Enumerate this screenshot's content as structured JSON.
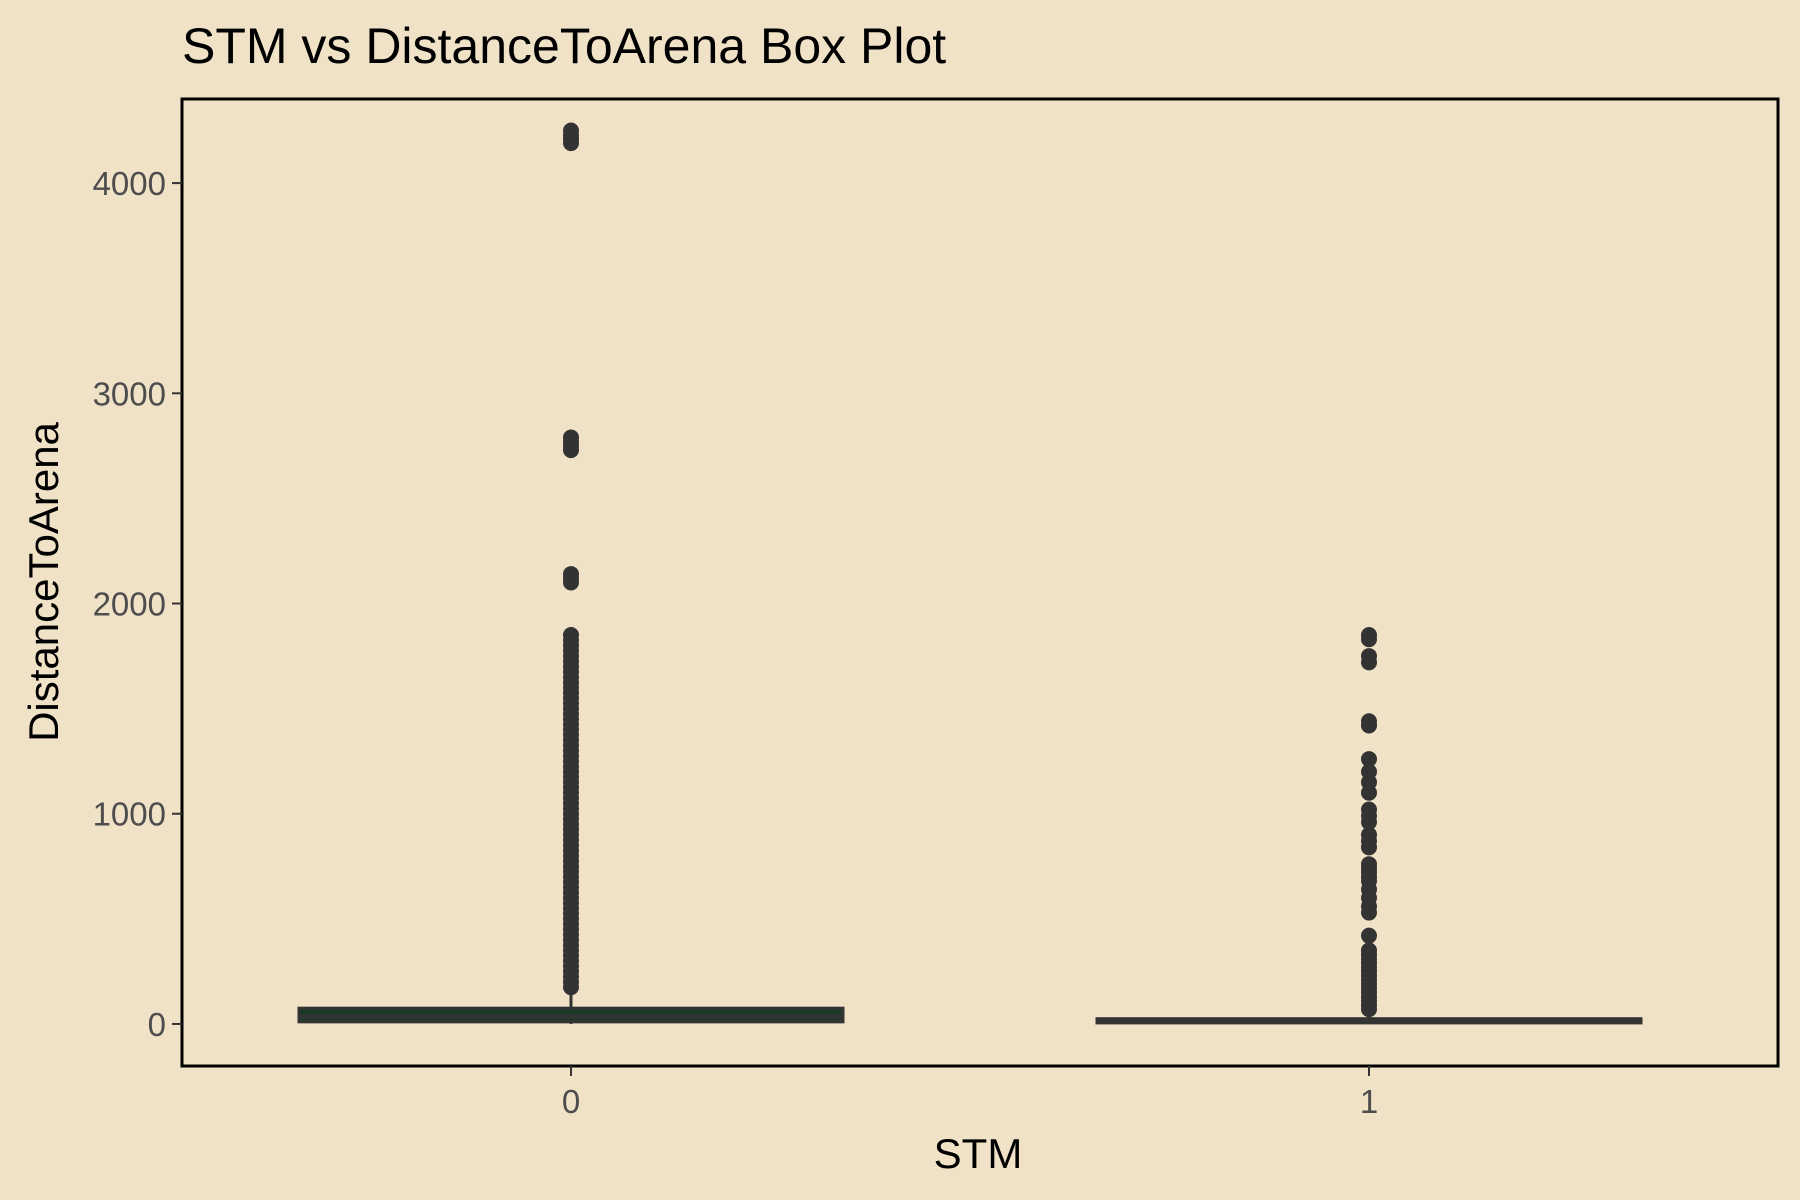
{
  "chart_data": {
    "type": "box",
    "title": "STM vs DistanceToArena Box Plot",
    "xlabel": "STM",
    "ylabel": "DistanceToArena",
    "categories": [
      "0",
      "1"
    ],
    "y_ticks": [
      0,
      1000,
      2000,
      3000,
      4000
    ],
    "ylim": [
      -200,
      4400
    ],
    "grid": false,
    "legend": "none",
    "colors": {
      "background": "#F0E2C7",
      "panel_border": "#000000",
      "box_fill_0": "#1B3A26",
      "box_fill_1": "#333333",
      "outline": "#333333",
      "outlier": "#333333",
      "tick_text": "#4D4D4D"
    },
    "boxes": [
      {
        "category": "0",
        "min": 0,
        "q1": 10,
        "median": 35,
        "q3": 75,
        "max": 170,
        "outliers": [
          175,
          200,
          225,
          250,
          275,
          300,
          325,
          350,
          375,
          400,
          425,
          450,
          475,
          500,
          525,
          550,
          575,
          600,
          625,
          650,
          675,
          700,
          725,
          750,
          775,
          800,
          825,
          850,
          875,
          900,
          925,
          950,
          975,
          1000,
          1025,
          1050,
          1075,
          1100,
          1125,
          1150,
          1175,
          1200,
          1225,
          1250,
          1275,
          1300,
          1325,
          1350,
          1375,
          1400,
          1425,
          1450,
          1475,
          1500,
          1525,
          1550,
          1575,
          1600,
          1625,
          1650,
          1675,
          1700,
          1725,
          1750,
          1775,
          1800,
          1825,
          1850,
          2100,
          2120,
          2140,
          2730,
          2750,
          2770,
          2790,
          4190,
          4210,
          4230,
          4250
        ]
      },
      {
        "category": "1",
        "min": 0,
        "q1": 5,
        "median": 15,
        "q3": 25,
        "max": 60,
        "outliers": [
          70,
          90,
          110,
          130,
          150,
          170,
          190,
          210,
          230,
          250,
          270,
          290,
          310,
          330,
          350,
          420,
          530,
          560,
          600,
          640,
          680,
          700,
          720,
          740,
          760,
          840,
          870,
          900,
          960,
          990,
          1020,
          1100,
          1150,
          1200,
          1260,
          1420,
          1440,
          1720,
          1750,
          1830,
          1850
        ]
      }
    ]
  }
}
